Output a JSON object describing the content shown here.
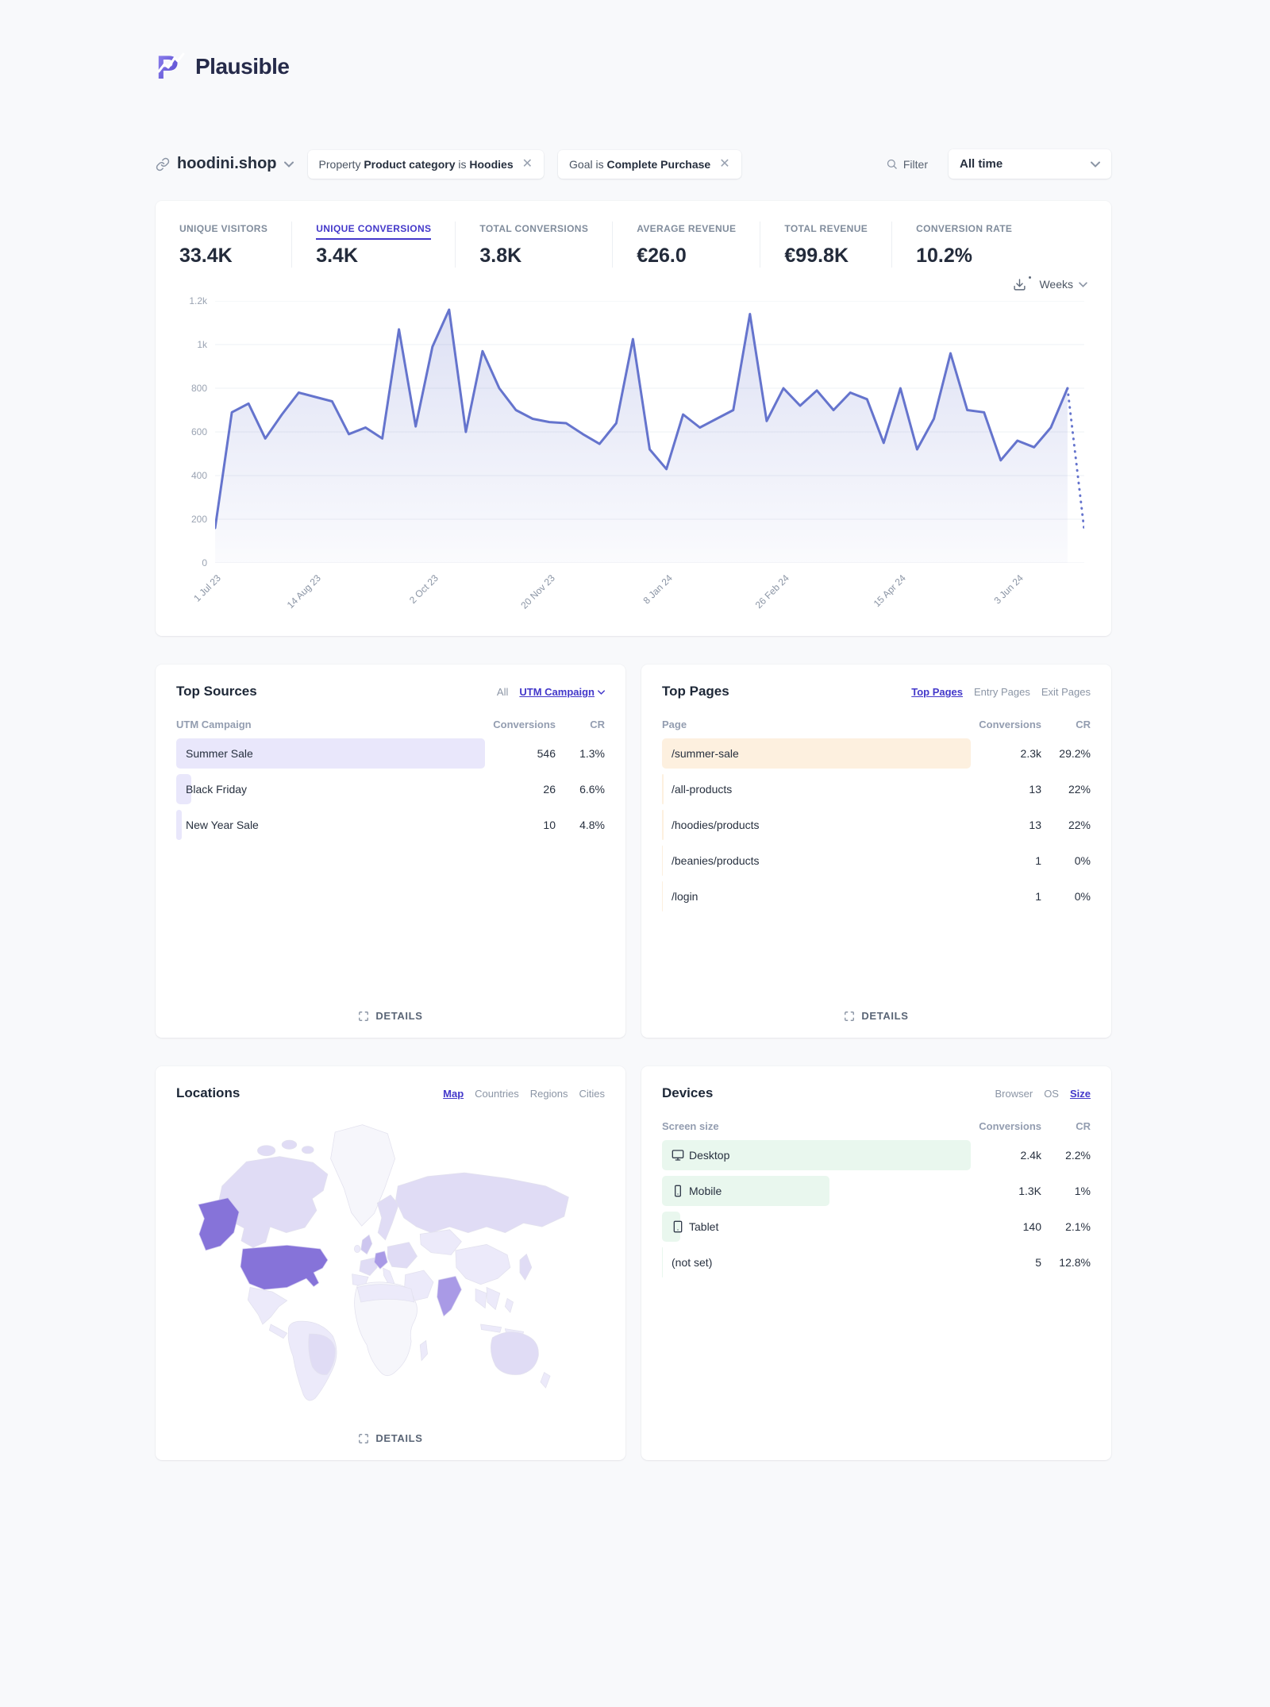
{
  "brand": {
    "name": "Plausible"
  },
  "site": {
    "domain": "hoodini.shop"
  },
  "filter_bar": {
    "pills": [
      {
        "segments": [
          {
            "text": "Property",
            "bold": false
          },
          {
            "text": "Product category",
            "bold": true
          },
          {
            "text": "is",
            "bold": false
          },
          {
            "text": "Hoodies",
            "bold": true
          }
        ]
      },
      {
        "segments": [
          {
            "text": "Goal is",
            "bold": false
          },
          {
            "text": "Complete Purchase",
            "bold": true
          }
        ]
      }
    ],
    "filter_label": "Filter",
    "date_range": "All time"
  },
  "stats": [
    {
      "label": "UNIQUE VISITORS",
      "value": "33.4K",
      "selected": false
    },
    {
      "label": "UNIQUE CONVERSIONS",
      "value": "3.4K",
      "selected": true
    },
    {
      "label": "TOTAL CONVERSIONS",
      "value": "3.8K",
      "selected": false
    },
    {
      "label": "AVERAGE REVENUE",
      "value": "€26.0",
      "selected": false
    },
    {
      "label": "TOTAL REVENUE",
      "value": "€99.8K",
      "selected": false
    },
    {
      "label": "CONVERSION RATE",
      "value": "10.2%",
      "selected": false
    }
  ],
  "chart_data": {
    "type": "area",
    "metric": "Unique conversions",
    "interval_label": "Weeks",
    "x_tick_labels": [
      "1 Jul 23",
      "14 Aug 23",
      "2 Oct 23",
      "20 Nov 23",
      "8 Jan 24",
      "26 Feb 24",
      "15 Apr 24",
      "3 Jun 24"
    ],
    "x_tick_indices": [
      0,
      6,
      13,
      20,
      27,
      34,
      41,
      48
    ],
    "values": [
      160,
      690,
      730,
      570,
      680,
      780,
      760,
      740,
      590,
      620,
      570,
      1070,
      625,
      990,
      1160,
      600,
      970,
      800,
      700,
      660,
      645,
      640,
      590,
      545,
      640,
      1025,
      520,
      430,
      680,
      620,
      660,
      700,
      1140,
      650,
      800,
      720,
      790,
      700,
      780,
      750,
      550,
      800,
      520,
      660,
      960,
      700,
      690,
      470,
      560,
      530,
      620,
      800,
      150
    ],
    "dotted_from_index": 51,
    "ylim": [
      0,
      1200
    ],
    "y_tick_labels": [
      "0",
      "200",
      "400",
      "600",
      "800",
      "1k",
      "1.2k"
    ],
    "line_color": "#6574cd",
    "grid_color": "#edf0f4"
  },
  "panels": {
    "sources": {
      "title": "Top Sources",
      "tabs": [
        {
          "label": "All",
          "active": false
        },
        {
          "label": "UTM Campaign",
          "active": true
        }
      ],
      "columns": {
        "name": "UTM Campaign",
        "conversions": "Conversions",
        "cr": "CR"
      },
      "rows": [
        {
          "name": "Summer Sale",
          "conversions": "546",
          "cr": "1.3%",
          "value": 546
        },
        {
          "name": "Black Friday",
          "conversions": "26",
          "cr": "6.6%",
          "value": 26
        },
        {
          "name": "New Year Sale",
          "conversions": "10",
          "cr": "4.8%",
          "value": 10
        }
      ],
      "bar_color": "#e9e7fb",
      "details_label": "DETAILS"
    },
    "pages": {
      "title": "Top Pages",
      "tabs": [
        {
          "label": "Top Pages",
          "active": true
        },
        {
          "label": "Entry Pages",
          "active": false
        },
        {
          "label": "Exit Pages",
          "active": false
        }
      ],
      "columns": {
        "name": "Page",
        "conversions": "Conversions",
        "cr": "CR"
      },
      "rows": [
        {
          "name": "/summer-sale",
          "conversions": "2.3k",
          "cr": "29.2%",
          "value": 2300
        },
        {
          "name": "/all-products",
          "conversions": "13",
          "cr": "22%",
          "value": 13
        },
        {
          "name": "/hoodies/products",
          "conversions": "13",
          "cr": "22%",
          "value": 13
        },
        {
          "name": "/beanies/products",
          "conversions": "1",
          "cr": "0%",
          "value": 1
        },
        {
          "name": "/login",
          "conversions": "1",
          "cr": "0%",
          "value": 1
        }
      ],
      "bar_color": "#fdf0df",
      "details_label": "DETAILS"
    },
    "locations": {
      "title": "Locations",
      "tabs": [
        {
          "label": "Map",
          "active": true
        },
        {
          "label": "Countries",
          "active": false
        },
        {
          "label": "Regions",
          "active": false
        },
        {
          "label": "Cities",
          "active": false
        }
      ],
      "map_palette": {
        "none": "#f6f6fb",
        "lowest": "#eceafa",
        "low": "#e0dcf5",
        "mid": "#cdc6ef",
        "high": "#a99ae6",
        "top": "#8673d9"
      },
      "details_label": "DETAILS"
    },
    "devices": {
      "title": "Devices",
      "tabs": [
        {
          "label": "Browser",
          "active": false
        },
        {
          "label": "OS",
          "active": false
        },
        {
          "label": "Size",
          "active": true
        }
      ],
      "columns": {
        "name": "Screen size",
        "conversions": "Conversions",
        "cr": "CR"
      },
      "rows": [
        {
          "name": "Desktop",
          "icon": "monitor",
          "conversions": "2.4k",
          "cr": "2.2%",
          "value": 2400
        },
        {
          "name": "Mobile",
          "icon": "smartphone",
          "conversions": "1.3K",
          "cr": "1%",
          "value": 1300
        },
        {
          "name": "Tablet",
          "icon": "tablet",
          "conversions": "140",
          "cr": "2.1%",
          "value": 140
        },
        {
          "name": "(not set)",
          "icon": "",
          "conversions": "5",
          "cr": "12.8%",
          "value": 5
        }
      ],
      "bar_color": "#e9f7ee"
    }
  }
}
